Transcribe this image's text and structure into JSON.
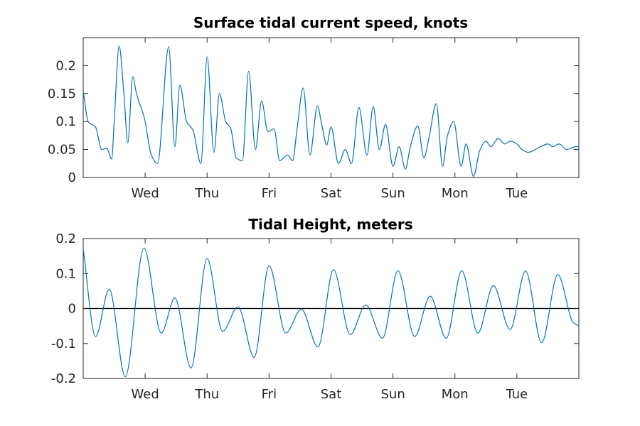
{
  "chart_data": [
    {
      "type": "line",
      "title": "Surface tidal current speed, knots",
      "xlabel": "",
      "ylabel": "",
      "xlim": [
        0,
        8
      ],
      "ylim": [
        0,
        0.25
      ],
      "yticks": [
        0,
        0.05,
        0.1,
        0.15,
        0.2
      ],
      "ytick_labels": [
        "0",
        "0.05",
        "0.1",
        "0.15",
        "0.2"
      ],
      "xticks": [
        1,
        2,
        3,
        4,
        5,
        6,
        7
      ],
      "xtick_labels": [
        "Wed",
        "Thu",
        "Fri",
        "Sat",
        "Sun",
        "Mon",
        "Tue"
      ],
      "grid": false,
      "line_color": "#0072BD",
      "series": [
        {
          "x": [
            0,
            0.08,
            0.2,
            0.3,
            0.38,
            0.46,
            0.5,
            0.58,
            0.66,
            0.72,
            0.8,
            0.86,
            0.99,
            1.1,
            1.2,
            1.38,
            1.48,
            1.56,
            1.67,
            1.77,
            1.9,
            2.0,
            2.11,
            2.2,
            2.3,
            2.38,
            2.47,
            2.57,
            2.67,
            2.78,
            2.88,
            2.98,
            3.08,
            3.17,
            3.3,
            3.38,
            3.45,
            3.55,
            3.66,
            3.78,
            3.85,
            3.93,
            4.0,
            4.12,
            4.23,
            4.33,
            4.45,
            4.58,
            4.68,
            4.78,
            4.88,
            5.0,
            5.1,
            5.2,
            5.28,
            5.4,
            5.5,
            5.58,
            5.7,
            5.8,
            5.88,
            5.98,
            6.1,
            6.18,
            6.3,
            6.4,
            6.5,
            6.58,
            6.7,
            6.8,
            6.9,
            7.0,
            7.08,
            7.18,
            7.3,
            7.38,
            7.5,
            7.58,
            7.68,
            7.8,
            7.95,
            8.0
          ],
          "y": [
            0.155,
            0.1,
            0.09,
            0.05,
            0.052,
            0.033,
            0.1,
            0.235,
            0.145,
            0.062,
            0.18,
            0.15,
            0.105,
            0.04,
            0.025,
            0.234,
            0.055,
            0.165,
            0.1,
            0.085,
            0.025,
            0.216,
            0.045,
            0.15,
            0.1,
            0.088,
            0.035,
            0.03,
            0.19,
            0.05,
            0.137,
            0.082,
            0.087,
            0.03,
            0.04,
            0.03,
            0.085,
            0.16,
            0.04,
            0.128,
            0.095,
            0.058,
            0.09,
            0.025,
            0.05,
            0.025,
            0.125,
            0.04,
            0.127,
            0.05,
            0.095,
            0.02,
            0.055,
            0.015,
            0.055,
            0.092,
            0.035,
            0.07,
            0.132,
            0.02,
            0.075,
            0.1,
            0.02,
            0.06,
            0.002,
            0.048,
            0.065,
            0.055,
            0.07,
            0.06,
            0.065,
            0.06,
            0.05,
            0.045,
            0.05,
            0.055,
            0.06,
            0.055,
            0.06,
            0.05,
            0.055,
            0.055
          ]
        }
      ]
    },
    {
      "type": "line",
      "title": "Tidal Height, meters",
      "xlabel": "",
      "ylabel": "",
      "xlim": [
        0,
        8
      ],
      "ylim": [
        -0.2,
        0.2
      ],
      "yticks": [
        -0.2,
        -0.1,
        0,
        0.1,
        0.2
      ],
      "ytick_labels": [
        "-0.2",
        "-0.1",
        "0",
        "0.1",
        "0.2"
      ],
      "xticks": [
        1,
        2,
        3,
        4,
        5,
        6,
        7
      ],
      "xtick_labels": [
        "Wed",
        "Thu",
        "Fri",
        "Sat",
        "Sun",
        "Mon",
        "Tue"
      ],
      "grid": false,
      "zero_line": true,
      "line_color": "#0072BD",
      "series": [
        {
          "x": [
            0,
            0.2,
            0.42,
            0.68,
            0.98,
            1.26,
            1.48,
            1.74,
            2.0,
            2.25,
            2.5,
            2.76,
            3.0,
            3.27,
            3.52,
            3.79,
            4.04,
            4.31,
            4.56,
            4.83,
            5.08,
            5.35,
            5.6,
            5.86,
            6.11,
            6.37,
            6.62,
            6.89,
            7.14,
            7.4,
            7.66,
            7.91,
            8.0
          ],
          "y": [
            0.17,
            -0.08,
            0.055,
            -0.195,
            0.173,
            -0.07,
            0.03,
            -0.17,
            0.143,
            -0.065,
            0.005,
            -0.14,
            0.122,
            -0.07,
            -0.002,
            -0.11,
            0.111,
            -0.075,
            0.01,
            -0.085,
            0.108,
            -0.08,
            0.035,
            -0.085,
            0.108,
            -0.07,
            0.065,
            -0.06,
            0.107,
            -0.098,
            0.097,
            -0.04,
            -0.05
          ]
        }
      ]
    }
  ]
}
